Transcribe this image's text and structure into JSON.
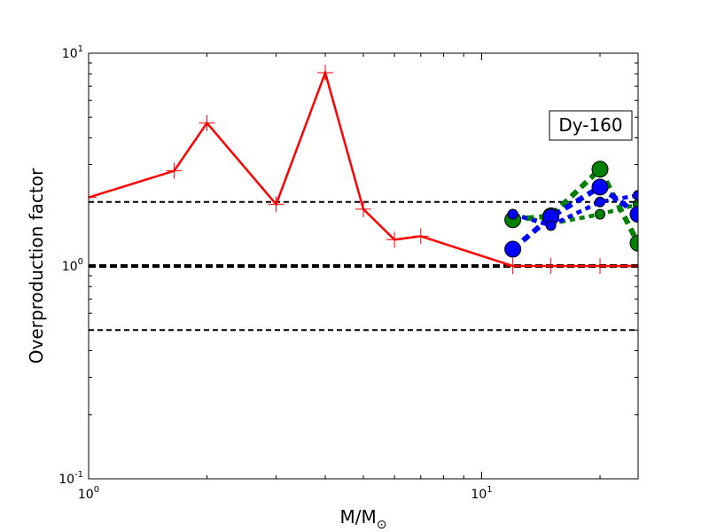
{
  "chart_data": {
    "type": "line",
    "xscale": "log",
    "yscale": "log",
    "xlim": [
      1,
      25
    ],
    "ylim": [
      0.1,
      10
    ],
    "x_ticks": [
      {
        "value": 1,
        "base": "10",
        "exp": "0"
      },
      {
        "value": 10,
        "base": "10",
        "exp": "1"
      }
    ],
    "y_ticks": [
      {
        "value": 0.1,
        "base": "10",
        "exp": "-1"
      },
      {
        "value": 1,
        "base": "10",
        "exp": "0"
      },
      {
        "value": 10,
        "base": "10",
        "exp": "1"
      }
    ],
    "xlabel": "M/M",
    "xlabel_sub": "⊙",
    "ylabel": "Overproduction factor",
    "annotation": "Dy-160",
    "grid": false,
    "reference_lines": [
      {
        "y": 2.0,
        "style": "dashed",
        "color": "#000000",
        "width": "thin"
      },
      {
        "y": 1.0,
        "style": "dashed",
        "color": "#000000",
        "width": "thick"
      },
      {
        "y": 0.5,
        "style": "dashed",
        "color": "#000000",
        "width": "thin"
      }
    ],
    "series": [
      {
        "style": "solid",
        "color": "#ff0000",
        "marker": "plus",
        "x": [
          1,
          1.65,
          2,
          3,
          4,
          5,
          6,
          7,
          12,
          15,
          20,
          25
        ],
        "y": [
          2.1,
          2.8,
          4.7,
          1.95,
          8.1,
          1.85,
          1.33,
          1.38,
          1.0,
          1.0,
          1.0,
          1.0
        ]
      },
      {
        "style": "dotted",
        "color": "#008000",
        "marker": "circle-large",
        "x": [
          12,
          15,
          20,
          25
        ],
        "y": [
          1.65,
          1.72,
          2.85,
          1.28
        ]
      },
      {
        "style": "dotted",
        "color": "#008000",
        "marker": "circle-small",
        "x": [
          12,
          15,
          20,
          25
        ],
        "y": [
          1.75,
          1.58,
          1.75,
          1.95
        ]
      },
      {
        "style": "dotted",
        "color": "#0000ff",
        "marker": "circle-large",
        "x": [
          12,
          15,
          20,
          25
        ],
        "y": [
          1.2,
          1.7,
          2.35,
          1.75
        ]
      },
      {
        "style": "dotted",
        "color": "#0000ff",
        "marker": "circle-small",
        "x": [
          12,
          15,
          20,
          25
        ],
        "y": [
          1.75,
          1.55,
          2.0,
          2.15
        ]
      }
    ]
  }
}
